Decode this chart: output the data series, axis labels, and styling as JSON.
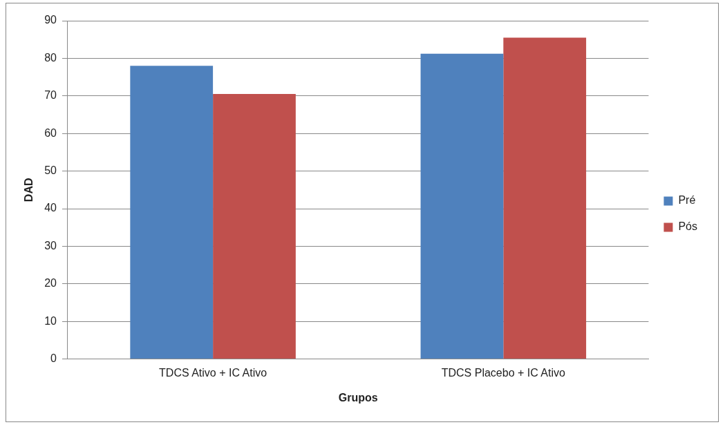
{
  "chart_data": {
    "type": "bar",
    "xlabel": "Grupos",
    "ylabel": "DAD",
    "categories": [
      "TDCS Ativo + IC Ativo",
      "TDCS Placebo + IC Ativo"
    ],
    "series": [
      {
        "name": "Pré",
        "color": "#4f81bd",
        "values": [
          78,
          81.2
        ]
      },
      {
        "name": "Pós",
        "color": "#c0504d",
        "values": [
          70.5,
          85.5
        ]
      }
    ],
    "ylim": [
      0,
      90
    ],
    "yticks": [
      0,
      10,
      20,
      30,
      40,
      50,
      60,
      70,
      80,
      90
    ],
    "grid": "y",
    "legend": "right"
  }
}
